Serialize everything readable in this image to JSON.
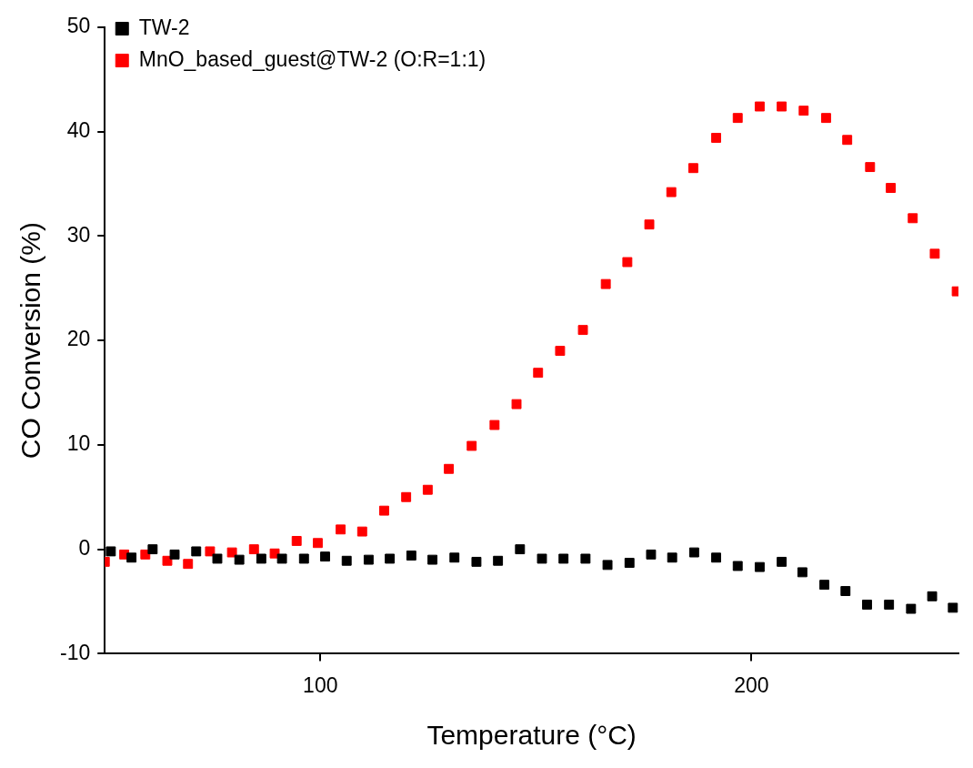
{
  "chart_data": {
    "type": "scatter",
    "xlabel": "Temperature (°C)",
    "ylabel": "CO Conversion (%)",
    "xlim": [
      50,
      248
    ],
    "xticks": [
      100,
      200
    ],
    "ylim": [
      -10,
      50
    ],
    "yticks": [
      -10,
      0,
      10,
      20,
      30,
      40,
      50
    ],
    "grid": false,
    "legend": "top left",
    "marker": "square",
    "series": [
      {
        "name": "TW-2",
        "color": "#000000",
        "x": [
          51.4,
          56.2,
          61.1,
          66.2,
          71.2,
          76.1,
          81.2,
          86.3,
          91.1,
          96.2,
          101.1,
          106.1,
          111.2,
          116.1,
          121.1,
          126.0,
          131.1,
          136.2,
          141.2,
          146.3,
          151.4,
          156.4,
          161.5,
          166.6,
          171.7,
          176.7,
          181.6,
          186.7,
          191.8,
          196.8,
          201.9,
          207.0,
          211.8,
          216.9,
          221.8,
          226.8,
          231.9,
          237.0,
          241.9,
          246.7
        ],
        "values": [
          -0.2,
          -0.8,
          0,
          -0.5,
          -0.2,
          -0.9,
          -1.0,
          -0.9,
          -0.9,
          -0.9,
          -0.7,
          -1.1,
          -1.0,
          -0.9,
          -0.6,
          -1.0,
          -0.8,
          -1.2,
          -1.1,
          0,
          -0.9,
          -0.9,
          -0.9,
          -1.5,
          -1.3,
          -0.5,
          -0.8,
          -0.3,
          -0.8,
          -1.6,
          -1.7,
          -1.2,
          -2.2,
          -3.4,
          -4.0,
          -5.3,
          -5.3,
          -5.7,
          -4.5,
          -5.6
        ]
      },
      {
        "name": "MnO_based_guest@TW-2 (O:R=1:1)",
        "color": "#ff0000",
        "x": [
          50,
          54.5,
          59.4,
          64.5,
          69.3,
          74.4,
          79.5,
          84.6,
          89.4,
          94.5,
          99.4,
          104.7,
          109.7,
          114.8,
          119.9,
          124.9,
          129.8,
          135.1,
          140.4,
          145.5,
          150.5,
          155.6,
          160.9,
          166.2,
          171.2,
          176.3,
          181.4,
          186.5,
          191.8,
          196.8,
          201.9,
          207.0,
          212.1,
          217.3,
          222.2,
          227.5,
          232.3,
          237.4,
          242.5,
          247.6
        ],
        "values": [
          -1.2,
          -0.5,
          -0.5,
          -1.1,
          -1.4,
          -0.2,
          -0.3,
          0,
          -0.4,
          0.8,
          0.6,
          1.9,
          1.7,
          3.7,
          5.0,
          5.7,
          7.7,
          9.9,
          11.9,
          13.9,
          16.9,
          19.0,
          21.0,
          25.4,
          27.5,
          31.1,
          34.2,
          36.5,
          39.4,
          41.3,
          42.4,
          42.4,
          42.0,
          41.3,
          39.2,
          36.6,
          34.6,
          31.7,
          28.3,
          24.7
        ]
      }
    ]
  }
}
